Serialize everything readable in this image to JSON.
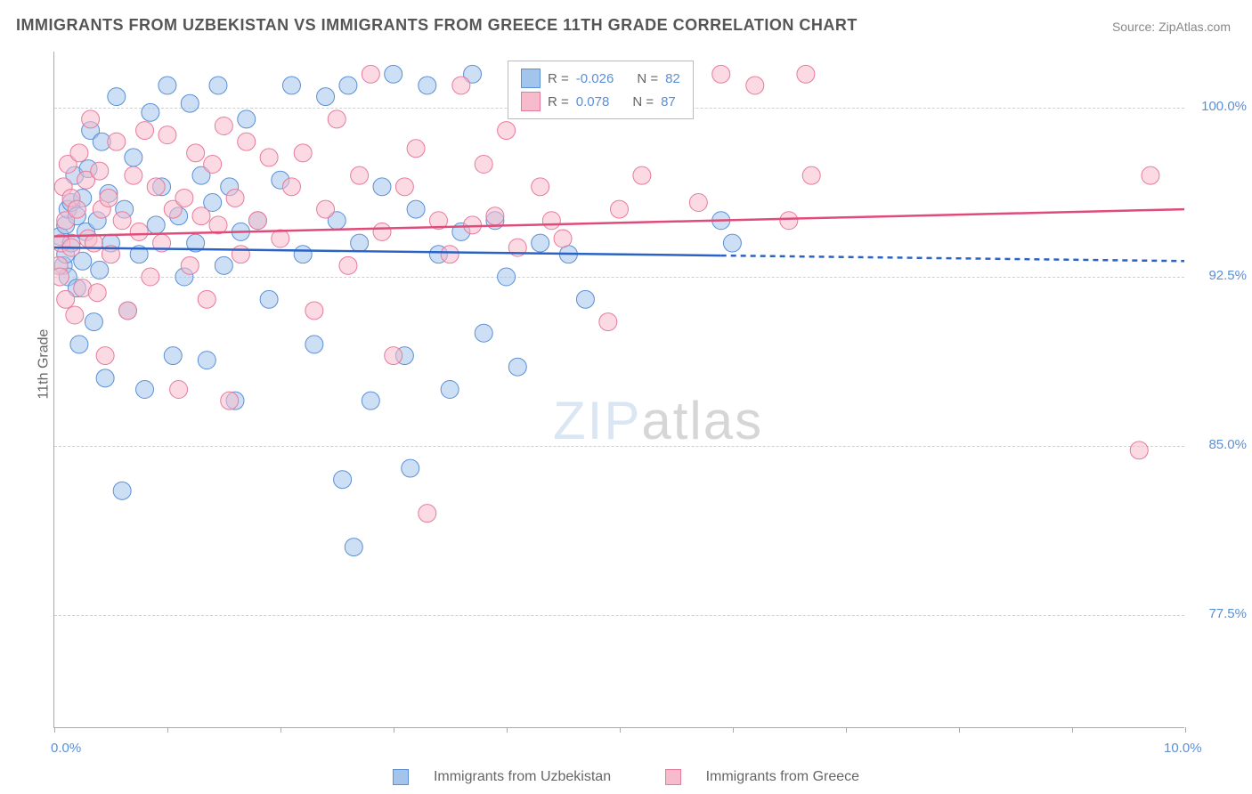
{
  "title": "IMMIGRANTS FROM UZBEKISTAN VS IMMIGRANTS FROM GREECE 11TH GRADE CORRELATION CHART",
  "source": "Source: ZipAtlas.com",
  "ylabel": "11th Grade",
  "watermark_part1": "ZIP",
  "watermark_part2": "atlas",
  "chart": {
    "type": "scatter",
    "xlim": [
      0,
      10
    ],
    "ylim": [
      72.5,
      102.5
    ],
    "x_ticks": [
      0,
      1,
      2,
      3,
      4,
      5,
      6,
      7,
      8,
      9,
      10
    ],
    "x_tick_labels": {
      "0": "0.0%",
      "10": "10.0%"
    },
    "y_gridlines": [
      77.5,
      85.0,
      92.5,
      100.0
    ],
    "y_tick_labels": [
      "77.5%",
      "85.0%",
      "92.5%",
      "100.0%"
    ],
    "background_color": "#ffffff",
    "grid_color": "#d0d0d0",
    "axis_color": "#aaaaaa",
    "label_color": "#666666",
    "tick_label_color": "#5b8fd6",
    "marker_radius": 10,
    "marker_opacity": 0.55,
    "trend_line_width": 2.5
  },
  "series": [
    {
      "name": "Immigrants from Uzbekistan",
      "fill_color": "#a3c5ec",
      "stroke_color": "#5b8fd6",
      "line_color": "#2b63c4",
      "R": "-0.026",
      "N": "82",
      "trend": {
        "x1": 0,
        "y1": 93.8,
        "x2": 10,
        "y2": 93.2,
        "solid_until_x": 5.9
      },
      "points": [
        [
          0.05,
          94.3
        ],
        [
          0.08,
          93.0
        ],
        [
          0.1,
          94.8
        ],
        [
          0.1,
          93.5
        ],
        [
          0.12,
          95.5
        ],
        [
          0.12,
          92.5
        ],
        [
          0.15,
          94.0
        ],
        [
          0.15,
          95.8
        ],
        [
          0.18,
          97.0
        ],
        [
          0.2,
          92.0
        ],
        [
          0.2,
          95.2
        ],
        [
          0.22,
          89.5
        ],
        [
          0.25,
          96.0
        ],
        [
          0.25,
          93.2
        ],
        [
          0.28,
          94.5
        ],
        [
          0.3,
          97.3
        ],
        [
          0.32,
          99.0
        ],
        [
          0.35,
          90.5
        ],
        [
          0.38,
          95.0
        ],
        [
          0.4,
          92.8
        ],
        [
          0.42,
          98.5
        ],
        [
          0.45,
          88.0
        ],
        [
          0.48,
          96.2
        ],
        [
          0.5,
          94.0
        ],
        [
          0.55,
          100.5
        ],
        [
          0.6,
          83.0
        ],
        [
          0.62,
          95.5
        ],
        [
          0.65,
          91.0
        ],
        [
          0.7,
          97.8
        ],
        [
          0.75,
          93.5
        ],
        [
          0.8,
          87.5
        ],
        [
          0.85,
          99.8
        ],
        [
          0.9,
          94.8
        ],
        [
          0.95,
          96.5
        ],
        [
          1.0,
          101.0
        ],
        [
          1.05,
          89.0
        ],
        [
          1.1,
          95.2
        ],
        [
          1.15,
          92.5
        ],
        [
          1.2,
          100.2
        ],
        [
          1.25,
          94.0
        ],
        [
          1.3,
          97.0
        ],
        [
          1.35,
          88.8
        ],
        [
          1.4,
          95.8
        ],
        [
          1.45,
          101.0
        ],
        [
          1.5,
          93.0
        ],
        [
          1.55,
          96.5
        ],
        [
          1.6,
          87.0
        ],
        [
          1.65,
          94.5
        ],
        [
          1.7,
          99.5
        ],
        [
          1.8,
          95.0
        ],
        [
          1.9,
          91.5
        ],
        [
          2.0,
          96.8
        ],
        [
          2.1,
          101.0
        ],
        [
          2.2,
          93.5
        ],
        [
          2.3,
          89.5
        ],
        [
          2.4,
          100.5
        ],
        [
          2.5,
          95.0
        ],
        [
          2.55,
          83.5
        ],
        [
          2.6,
          101.0
        ],
        [
          2.65,
          80.5
        ],
        [
          2.7,
          94.0
        ],
        [
          2.8,
          87.0
        ],
        [
          2.9,
          96.5
        ],
        [
          3.0,
          101.5
        ],
        [
          3.1,
          89.0
        ],
        [
          3.15,
          84.0
        ],
        [
          3.2,
          95.5
        ],
        [
          3.3,
          101.0
        ],
        [
          3.4,
          93.5
        ],
        [
          3.5,
          87.5
        ],
        [
          3.6,
          94.5
        ],
        [
          3.7,
          101.5
        ],
        [
          3.8,
          90.0
        ],
        [
          3.9,
          95.0
        ],
        [
          4.0,
          92.5
        ],
        [
          4.1,
          88.5
        ],
        [
          4.3,
          94.0
        ],
        [
          4.5,
          101.5
        ],
        [
          4.55,
          93.5
        ],
        [
          4.7,
          91.5
        ],
        [
          5.9,
          95.0
        ],
        [
          6.0,
          94.0
        ]
      ]
    },
    {
      "name": "Immigrants from Greece",
      "fill_color": "#f7bccc",
      "stroke_color": "#e87a9b",
      "line_color": "#e04c7a",
      "R": "0.078",
      "N": "87",
      "trend": {
        "x1": 0,
        "y1": 94.3,
        "x2": 10,
        "y2": 95.5,
        "solid_until_x": 10
      },
      "points": [
        [
          0.04,
          93.0
        ],
        [
          0.05,
          92.5
        ],
        [
          0.06,
          94.0
        ],
        [
          0.08,
          96.5
        ],
        [
          0.1,
          95.0
        ],
        [
          0.1,
          91.5
        ],
        [
          0.12,
          97.5
        ],
        [
          0.15,
          93.8
        ],
        [
          0.15,
          96.0
        ],
        [
          0.18,
          90.8
        ],
        [
          0.2,
          95.5
        ],
        [
          0.22,
          98.0
        ],
        [
          0.25,
          92.0
        ],
        [
          0.28,
          96.8
        ],
        [
          0.3,
          94.2
        ],
        [
          0.32,
          99.5
        ],
        [
          0.35,
          94.0
        ],
        [
          0.38,
          91.8
        ],
        [
          0.4,
          97.2
        ],
        [
          0.42,
          95.5
        ],
        [
          0.45,
          89.0
        ],
        [
          0.48,
          96.0
        ],
        [
          0.5,
          93.5
        ],
        [
          0.55,
          98.5
        ],
        [
          0.6,
          95.0
        ],
        [
          0.65,
          91.0
        ],
        [
          0.7,
          97.0
        ],
        [
          0.75,
          94.5
        ],
        [
          0.8,
          99.0
        ],
        [
          0.85,
          92.5
        ],
        [
          0.9,
          96.5
        ],
        [
          0.95,
          94.0
        ],
        [
          1.0,
          98.8
        ],
        [
          1.05,
          95.5
        ],
        [
          1.1,
          87.5
        ],
        [
          1.15,
          96.0
        ],
        [
          1.2,
          93.0
        ],
        [
          1.25,
          98.0
        ],
        [
          1.3,
          95.2
        ],
        [
          1.35,
          91.5
        ],
        [
          1.4,
          97.5
        ],
        [
          1.45,
          94.8
        ],
        [
          1.5,
          99.2
        ],
        [
          1.55,
          87.0
        ],
        [
          1.6,
          96.0
        ],
        [
          1.65,
          93.5
        ],
        [
          1.7,
          98.5
        ],
        [
          1.8,
          95.0
        ],
        [
          1.9,
          97.8
        ],
        [
          2.0,
          94.2
        ],
        [
          2.1,
          96.5
        ],
        [
          2.2,
          98.0
        ],
        [
          2.3,
          91.0
        ],
        [
          2.4,
          95.5
        ],
        [
          2.5,
          99.5
        ],
        [
          2.6,
          93.0
        ],
        [
          2.7,
          97.0
        ],
        [
          2.8,
          101.5
        ],
        [
          2.9,
          94.5
        ],
        [
          3.0,
          89.0
        ],
        [
          3.1,
          96.5
        ],
        [
          3.2,
          98.2
        ],
        [
          3.3,
          82.0
        ],
        [
          3.4,
          95.0
        ],
        [
          3.5,
          93.5
        ],
        [
          3.6,
          101.0
        ],
        [
          3.7,
          94.8
        ],
        [
          3.8,
          97.5
        ],
        [
          3.9,
          95.2
        ],
        [
          4.0,
          99.0
        ],
        [
          4.1,
          93.8
        ],
        [
          4.3,
          96.5
        ],
        [
          4.4,
          95.0
        ],
        [
          4.5,
          94.2
        ],
        [
          4.7,
          101.0
        ],
        [
          4.9,
          90.5
        ],
        [
          5.0,
          95.5
        ],
        [
          5.2,
          97.0
        ],
        [
          5.5,
          101.5
        ],
        [
          5.7,
          95.8
        ],
        [
          5.9,
          101.5
        ],
        [
          6.2,
          101.0
        ],
        [
          6.5,
          95.0
        ],
        [
          6.65,
          101.5
        ],
        [
          6.7,
          97.0
        ],
        [
          9.6,
          84.8
        ],
        [
          9.7,
          97.0
        ]
      ]
    }
  ],
  "legend_labels": {
    "R": "R =",
    "N": "N ="
  }
}
